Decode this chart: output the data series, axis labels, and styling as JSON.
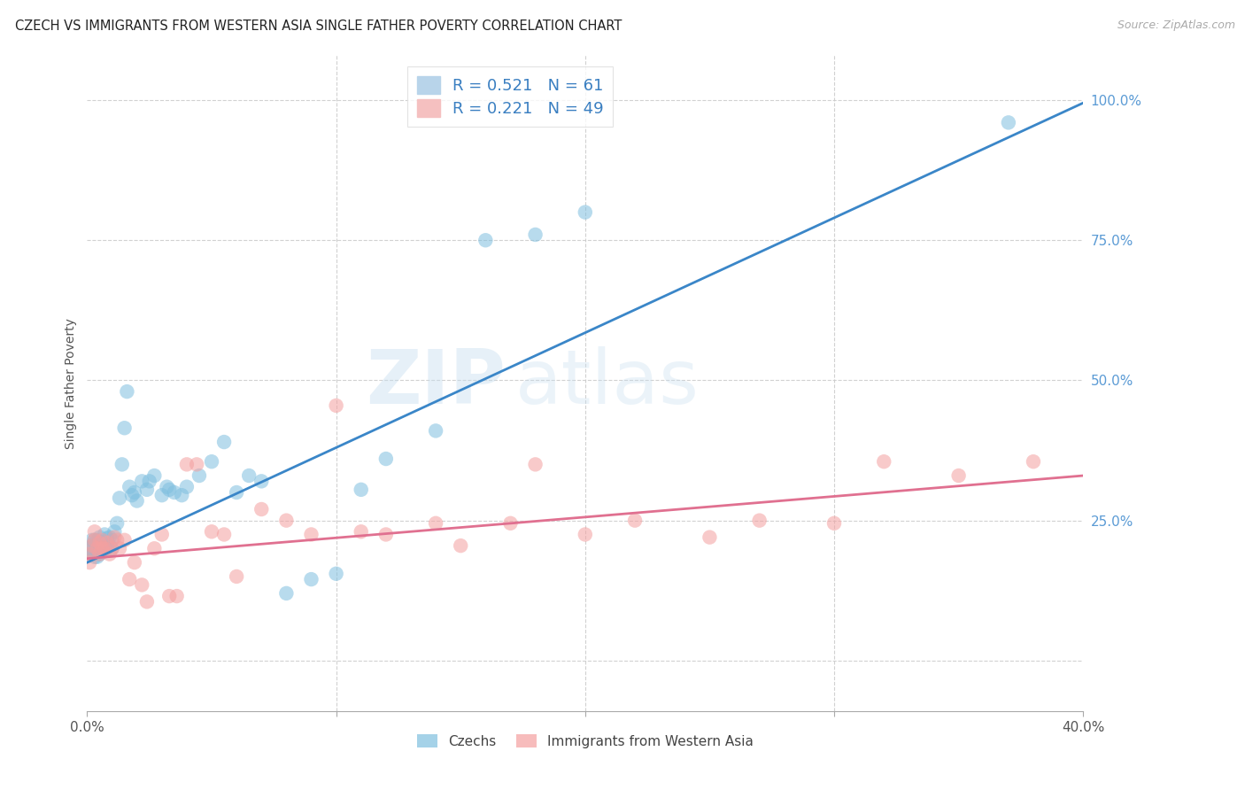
{
  "title": "CZECH VS IMMIGRANTS FROM WESTERN ASIA SINGLE FATHER POVERTY CORRELATION CHART",
  "source": "Source: ZipAtlas.com",
  "ylabel": "Single Father Poverty",
  "watermark": "ZIPatlas",
  "blue_color": "#7fbfdf",
  "pink_color": "#f4a0a0",
  "blue_line_color": "#3a86c8",
  "pink_line_color": "#e07090",
  "blue_label": "Czechs",
  "pink_label": "Immigrants from Western Asia",
  "blue_R": 0.521,
  "blue_N": 61,
  "pink_R": 0.221,
  "pink_N": 49,
  "xmin": 0.0,
  "xmax": 0.4,
  "ymin": -0.09,
  "ymax": 1.08,
  "blue_line_x0": 0.0,
  "blue_line_y0": 0.175,
  "blue_line_x1": 0.4,
  "blue_line_y1": 0.995,
  "pink_line_x0": 0.0,
  "pink_line_y0": 0.182,
  "pink_line_x1": 0.4,
  "pink_line_y1": 0.33,
  "czechs_x": [
    0.001,
    0.001,
    0.002,
    0.002,
    0.002,
    0.003,
    0.003,
    0.003,
    0.004,
    0.004,
    0.004,
    0.005,
    0.005,
    0.005,
    0.006,
    0.006,
    0.007,
    0.007,
    0.007,
    0.008,
    0.008,
    0.009,
    0.009,
    0.01,
    0.01,
    0.011,
    0.012,
    0.013,
    0.014,
    0.015,
    0.016,
    0.017,
    0.018,
    0.019,
    0.02,
    0.022,
    0.024,
    0.025,
    0.027,
    0.03,
    0.032,
    0.033,
    0.035,
    0.038,
    0.04,
    0.045,
    0.05,
    0.055,
    0.06,
    0.065,
    0.07,
    0.08,
    0.09,
    0.1,
    0.11,
    0.12,
    0.14,
    0.16,
    0.18,
    0.2,
    0.37
  ],
  "czechs_y": [
    0.19,
    0.2,
    0.19,
    0.205,
    0.215,
    0.185,
    0.2,
    0.215,
    0.185,
    0.2,
    0.215,
    0.19,
    0.205,
    0.22,
    0.195,
    0.21,
    0.195,
    0.21,
    0.225,
    0.2,
    0.218,
    0.205,
    0.22,
    0.2,
    0.215,
    0.23,
    0.245,
    0.29,
    0.35,
    0.415,
    0.48,
    0.31,
    0.295,
    0.3,
    0.285,
    0.32,
    0.305,
    0.32,
    0.33,
    0.295,
    0.31,
    0.305,
    0.3,
    0.295,
    0.31,
    0.33,
    0.355,
    0.39,
    0.3,
    0.33,
    0.32,
    0.12,
    0.145,
    0.155,
    0.305,
    0.36,
    0.41,
    0.75,
    0.76,
    0.8,
    0.96
  ],
  "immigrants_x": [
    0.001,
    0.001,
    0.002,
    0.003,
    0.003,
    0.004,
    0.005,
    0.005,
    0.006,
    0.006,
    0.007,
    0.008,
    0.009,
    0.01,
    0.011,
    0.012,
    0.013,
    0.015,
    0.017,
    0.019,
    0.022,
    0.024,
    0.027,
    0.03,
    0.033,
    0.036,
    0.04,
    0.044,
    0.05,
    0.055,
    0.06,
    0.07,
    0.08,
    0.09,
    0.1,
    0.11,
    0.12,
    0.14,
    0.15,
    0.17,
    0.18,
    0.2,
    0.22,
    0.25,
    0.27,
    0.3,
    0.32,
    0.35,
    0.38
  ],
  "immigrants_y": [
    0.175,
    0.19,
    0.205,
    0.215,
    0.23,
    0.2,
    0.19,
    0.21,
    0.2,
    0.215,
    0.2,
    0.21,
    0.19,
    0.2,
    0.22,
    0.215,
    0.2,
    0.215,
    0.145,
    0.175,
    0.135,
    0.105,
    0.2,
    0.225,
    0.115,
    0.115,
    0.35,
    0.35,
    0.23,
    0.225,
    0.15,
    0.27,
    0.25,
    0.225,
    0.455,
    0.23,
    0.225,
    0.245,
    0.205,
    0.245,
    0.35,
    0.225,
    0.25,
    0.22,
    0.25,
    0.245,
    0.355,
    0.33,
    0.355
  ]
}
